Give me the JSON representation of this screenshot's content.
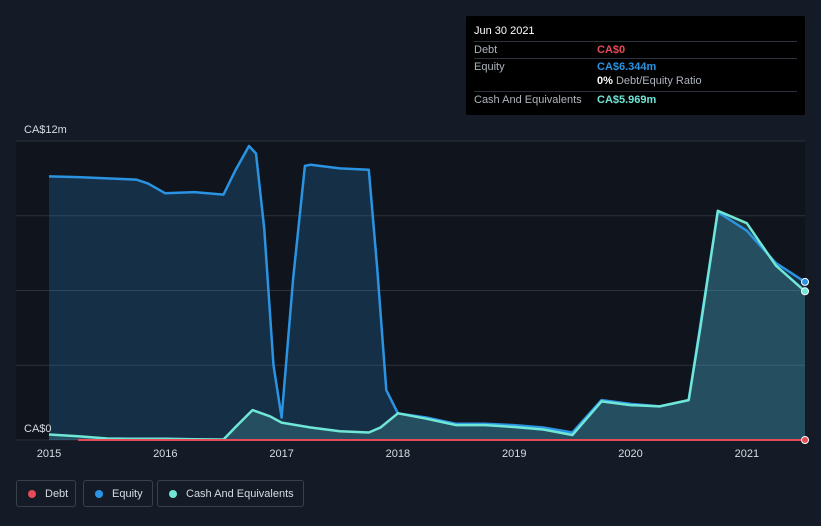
{
  "colors": {
    "background": "#151b26",
    "plot_background": "#10141c",
    "debt": "#e64b57",
    "equity": "#2a93e2",
    "cash": "#6fe6d6",
    "grid": "#2c313b"
  },
  "tooltip": {
    "date": "Jun 30 2021",
    "rows": [
      {
        "label": "Debt",
        "value": "CA$0"
      },
      {
        "label": "Equity",
        "value": "CA$6.344m"
      },
      {
        "label": "Cash And Equivalents",
        "value": "CA$5.969m"
      }
    ],
    "ratio_value": "0%",
    "ratio_label": "Debt/Equity Ratio"
  },
  "legend": [
    {
      "label": "Debt",
      "icon": "dot"
    },
    {
      "label": "Equity",
      "icon": "dot"
    },
    {
      "label": "Cash And Equivalents",
      "icon": "dot"
    }
  ],
  "chart_data": {
    "type": "area",
    "title": "",
    "xlabel": "",
    "ylabel": "",
    "y_top_label": "CA$12m",
    "y_bottom_label": "CA$0",
    "xlim": [
      2015.0,
      2021.5
    ],
    "ylim": [
      0,
      12
    ],
    "x_ticks": [
      2015,
      2016,
      2017,
      2018,
      2019,
      2020,
      2021
    ],
    "x_tick_labels": [
      "2015",
      "2016",
      "2017",
      "2018",
      "2019",
      "2020",
      "2021"
    ],
    "grid": "horizontal",
    "legend_position": "bottom-left",
    "series": [
      {
        "name": "Debt",
        "x": [
          2015.25,
          2021.5
        ],
        "values": [
          0,
          0
        ]
      },
      {
        "name": "Equity",
        "x": [
          2015.0,
          2015.25,
          2015.5,
          2015.75,
          2015.85,
          2016.0,
          2016.25,
          2016.5,
          2016.6,
          2016.72,
          2016.78,
          2016.85,
          2016.93,
          2017.0,
          2017.1,
          2017.2,
          2017.25,
          2017.5,
          2017.75,
          2017.82,
          2017.9,
          2018.0,
          2018.25,
          2018.5,
          2018.75,
          2019.0,
          2019.25,
          2019.5,
          2019.75,
          2020.0,
          2020.25,
          2020.5,
          2020.75,
          2021.0,
          2021.25,
          2021.5
        ],
        "values": [
          10.58,
          10.55,
          10.5,
          10.45,
          10.3,
          9.9,
          9.95,
          9.85,
          10.8,
          11.8,
          11.5,
          8.5,
          3.0,
          0.9,
          6.5,
          11.0,
          11.05,
          10.9,
          10.85,
          7.0,
          2.0,
          1.07,
          0.9,
          0.65,
          0.65,
          0.6,
          0.5,
          0.3,
          1.6,
          1.45,
          1.35,
          1.6,
          9.15,
          8.4,
          7.1,
          6.344
        ]
      },
      {
        "name": "Cash And Equivalents",
        "x": [
          2015.0,
          2015.25,
          2015.5,
          2015.75,
          2016.0,
          2016.25,
          2016.5,
          2016.6,
          2016.75,
          2016.9,
          2017.0,
          2017.25,
          2017.5,
          2017.75,
          2017.85,
          2018.0,
          2018.25,
          2018.5,
          2018.75,
          2019.0,
          2019.25,
          2019.5,
          2019.75,
          2020.0,
          2020.25,
          2020.5,
          2020.6,
          2020.75,
          2021.0,
          2021.25,
          2021.5
        ],
        "values": [
          0.22,
          0.15,
          0.06,
          0.05,
          0.05,
          0.03,
          0.02,
          0.5,
          1.2,
          0.95,
          0.7,
          0.5,
          0.35,
          0.3,
          0.5,
          1.07,
          0.85,
          0.6,
          0.6,
          0.52,
          0.42,
          0.2,
          1.55,
          1.4,
          1.35,
          1.6,
          4.5,
          9.2,
          8.7,
          7.0,
          5.969
        ]
      }
    ]
  }
}
